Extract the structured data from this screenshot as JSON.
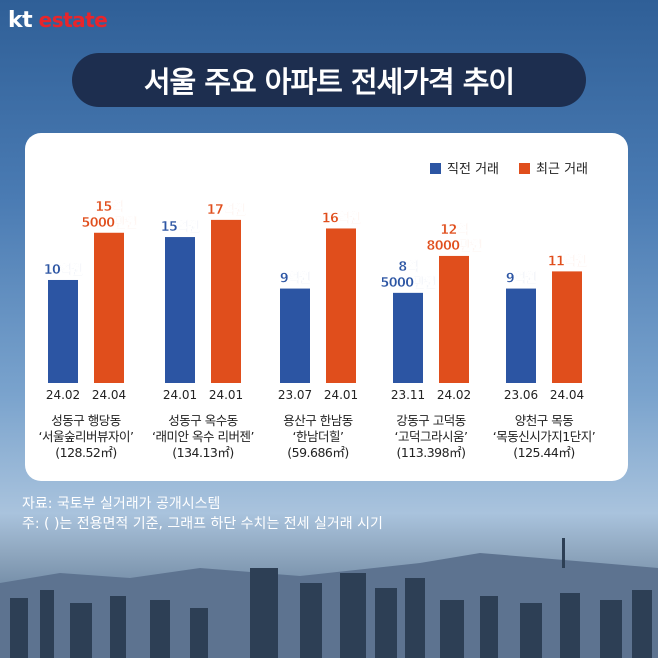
{
  "logo": {
    "kt": "kt",
    "estate": "estate"
  },
  "title": "서울 주요 아파트 전세가격 추이",
  "colors": {
    "prev": "#2c55a3",
    "recent": "#e04e1c"
  },
  "chart_data": {
    "type": "bar",
    "unit": "억원",
    "ylim": [
      -2,
      18.5
    ],
    "legend": [
      "직전 거래",
      "최근 거래"
    ],
    "legend_position": "top-right",
    "groups": [
      {
        "name": "성동구 행당동",
        "apt": "‘서울숲리버뷰자이’",
        "area": "(128.52㎡)",
        "prev": {
          "value": 10,
          "label": [
            "10억원"
          ],
          "date": "24.02"
        },
        "recent": {
          "value": 15.5,
          "label": [
            "15억",
            "5000만원"
          ],
          "date": "24.04"
        }
      },
      {
        "name": "성동구 옥수동",
        "apt": "‘래미안 옥수 리버젠’",
        "area": "(134.13㎡)",
        "prev": {
          "value": 15,
          "label": [
            "15억원"
          ],
          "date": "24.01"
        },
        "recent": {
          "value": 17,
          "label": [
            "17억원"
          ],
          "date": "24.01"
        }
      },
      {
        "name": "용산구 한남동",
        "apt": "‘한남더힐’",
        "area": "(59.686㎡)",
        "prev": {
          "value": 9,
          "label": [
            "9억원"
          ],
          "date": "23.07"
        },
        "recent": {
          "value": 16,
          "label": [
            "16억원"
          ],
          "date": "24.01"
        }
      },
      {
        "name": "강동구 고덕동",
        "apt": "‘고덕그라시움’",
        "area": "(113.398㎡)",
        "prev": {
          "value": 8.5,
          "label": [
            "8억",
            "5000만원"
          ],
          "date": "23.11"
        },
        "recent": {
          "value": 12.8,
          "label": [
            "12억",
            "8000만원"
          ],
          "date": "24.02"
        }
      },
      {
        "name": "양천구 목동",
        "apt": "‘목동신시가지1단지’",
        "area": "(125.44㎡)",
        "prev": {
          "value": 9,
          "label": [
            "9억원"
          ],
          "date": "23.06"
        },
        "recent": {
          "value": 11,
          "label": [
            "11억원"
          ],
          "date": "24.04"
        }
      }
    ]
  },
  "notes": [
    "자료: 국토부 실거래가 공개시스템",
    "주: ( )는 전용면적 기준, 그래프 하단 수치는 전세 실거래 시기"
  ]
}
